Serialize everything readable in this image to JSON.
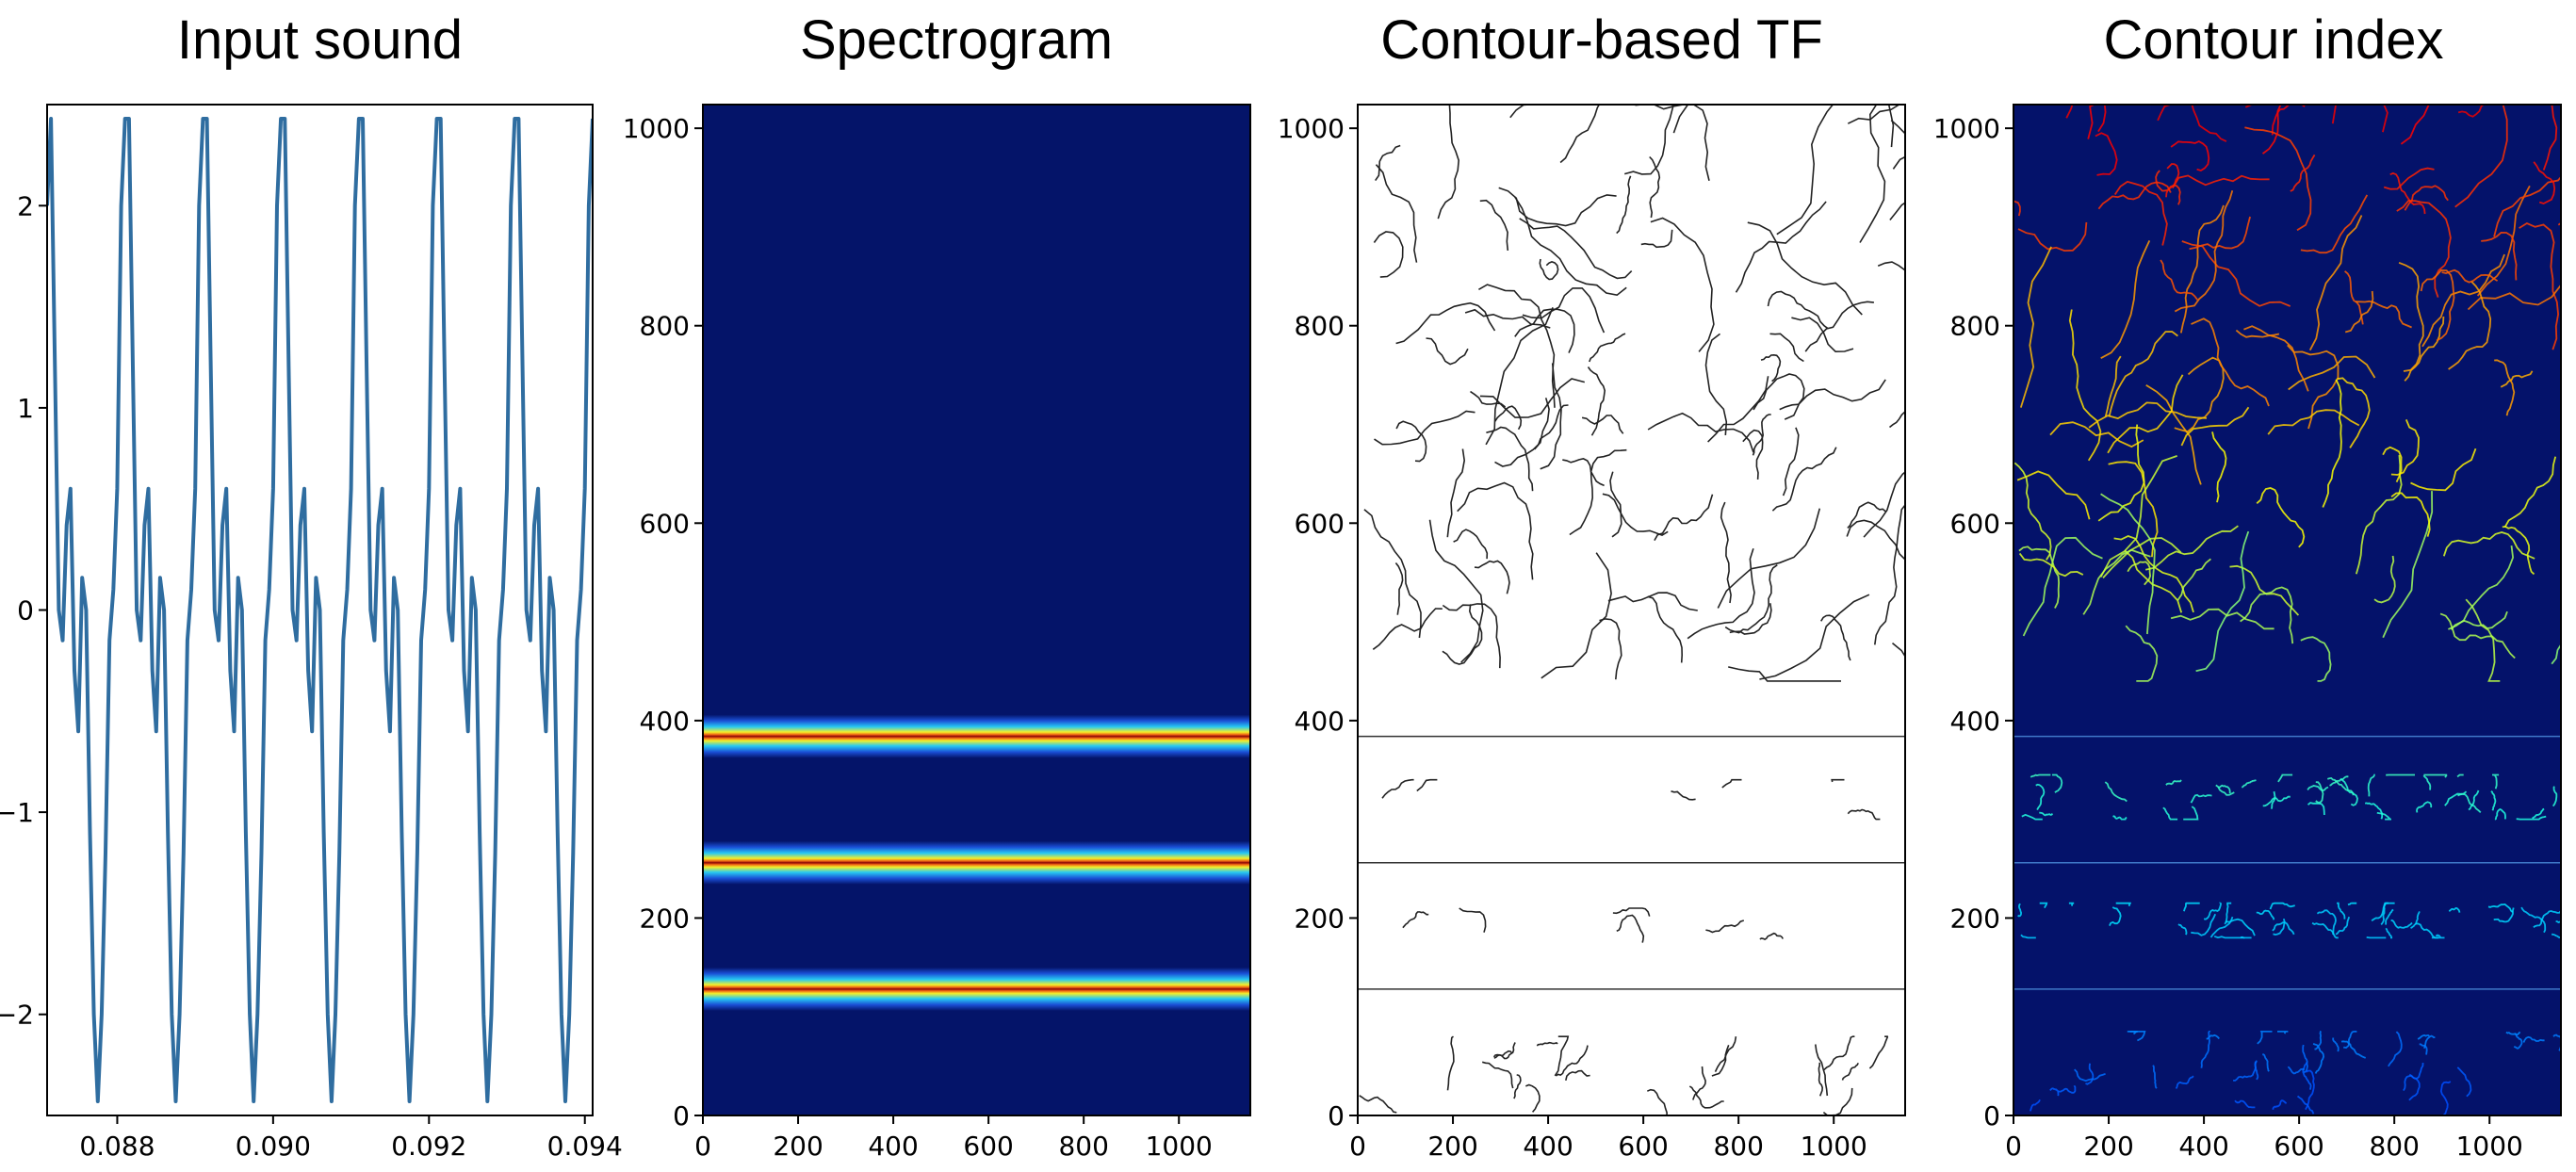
{
  "figure": {
    "panels": [
      {
        "id": "p0",
        "title": "Input sound"
      },
      {
        "id": "p1",
        "title": "Spectrogram"
      },
      {
        "id": "p2",
        "title": "Contour-based TF"
      },
      {
        "id": "p3",
        "title": "Contour index"
      }
    ]
  },
  "chart_data": [
    {
      "type": "line",
      "title": "Input sound",
      "xlabel": "",
      "ylabel": "",
      "xlim": [
        0.0871,
        0.0941
      ],
      "ylim": [
        -2.5,
        2.5
      ],
      "x_ticks": [
        0.088,
        0.09,
        0.092,
        0.094
      ],
      "x_tick_labels": [
        "0.088",
        "0.090",
        "0.092",
        "0.094"
      ],
      "y_ticks": [
        -2,
        -1,
        0,
        1,
        2
      ],
      "y_tick_labels": [
        "−2",
        "−1",
        "0",
        "1",
        "2"
      ],
      "grid": false,
      "line_color": "#2f6da0",
      "series": [
        {
          "period": 0.001,
          "x": [
            0.0871,
            0.08715,
            0.0872,
            0.08725,
            0.0873,
            0.08735,
            0.0874,
            0.08745,
            0.0875,
            0.08755,
            0.0876,
            0.08765,
            0.0877,
            0.08775,
            0.0878,
            0.08785,
            0.0879,
            0.08795,
            0.088,
            0.08805,
            0.0881
          ],
          "y": [
            2.0,
            2.43,
            1.2,
            0.0,
            -0.15,
            0.42,
            0.6,
            -0.3,
            -0.6,
            0.16,
            0.0,
            -1.1,
            -2.0,
            -2.43,
            -2.0,
            -1.2,
            -0.15,
            0.1,
            0.6,
            2.0,
            2.43
          ]
        }
      ]
    },
    {
      "type": "heatmap",
      "title": "Spectrogram",
      "xlim": [
        0,
        1150
      ],
      "ylim": [
        0,
        1024
      ],
      "x_ticks": [
        0,
        200,
        400,
        600,
        800,
        1000
      ],
      "x_tick_labels": [
        "0",
        "200",
        "400",
        "600",
        "800",
        "1000"
      ],
      "y_ticks": [
        0,
        200,
        400,
        600,
        800,
        1000
      ],
      "y_tick_labels": [
        "0",
        "200",
        "400",
        "600",
        "800",
        "1000"
      ],
      "colormap": "jet",
      "background_color": "#041469",
      "bands": [
        {
          "center": 128,
          "halfwidth": 22
        },
        {
          "center": 256,
          "halfwidth": 22
        },
        {
          "center": 384,
          "halfwidth": 22
        }
      ]
    },
    {
      "type": "scatter",
      "title": "Contour-based TF",
      "xlim": [
        0,
        1150
      ],
      "ylim": [
        0,
        1024
      ],
      "x_ticks": [
        0,
        200,
        400,
        600,
        800,
        1000
      ],
      "x_tick_labels": [
        "0",
        "200",
        "400",
        "600",
        "800",
        "1000"
      ],
      "y_ticks": [
        0,
        200,
        400,
        600,
        800,
        1000
      ],
      "y_tick_labels": [
        "0",
        "200",
        "400",
        "600",
        "800",
        "1000"
      ],
      "stroke_color": "#222222",
      "horizontal_lines": [
        128,
        256,
        384
      ],
      "contour_regions": [
        {
          "y_range": [
            440,
            1024
          ],
          "count": 95
        },
        {
          "y_range": [
            300,
            340
          ],
          "count": 6
        },
        {
          "y_range": [
            175,
            210
          ],
          "count": 6
        },
        {
          "y_range": [
            0,
            80
          ],
          "count": 22
        }
      ]
    },
    {
      "type": "heatmap",
      "title": "Contour index",
      "xlim": [
        0,
        1150
      ],
      "ylim": [
        0,
        1024
      ],
      "x_ticks": [
        0,
        200,
        400,
        600,
        800,
        1000
      ],
      "x_tick_labels": [
        "0",
        "200",
        "400",
        "600",
        "800",
        "1000"
      ],
      "y_ticks": [
        0,
        200,
        400,
        600,
        800,
        1000
      ],
      "y_tick_labels": [
        "0",
        "200",
        "400",
        "600",
        "800",
        "1000"
      ],
      "colormap": "jet",
      "background_color": "#04126a",
      "horizontal_lines": [
        128,
        256,
        384
      ],
      "horizontal_line_color": "#3f78c8",
      "contour_regions": [
        {
          "y_range": [
            440,
            1024
          ],
          "count": 110
        },
        {
          "y_range": [
            300,
            345
          ],
          "count": 40
        },
        {
          "y_range": [
            180,
            215
          ],
          "count": 40
        },
        {
          "y_range": [
            0,
            85
          ],
          "count": 40
        }
      ]
    }
  ]
}
